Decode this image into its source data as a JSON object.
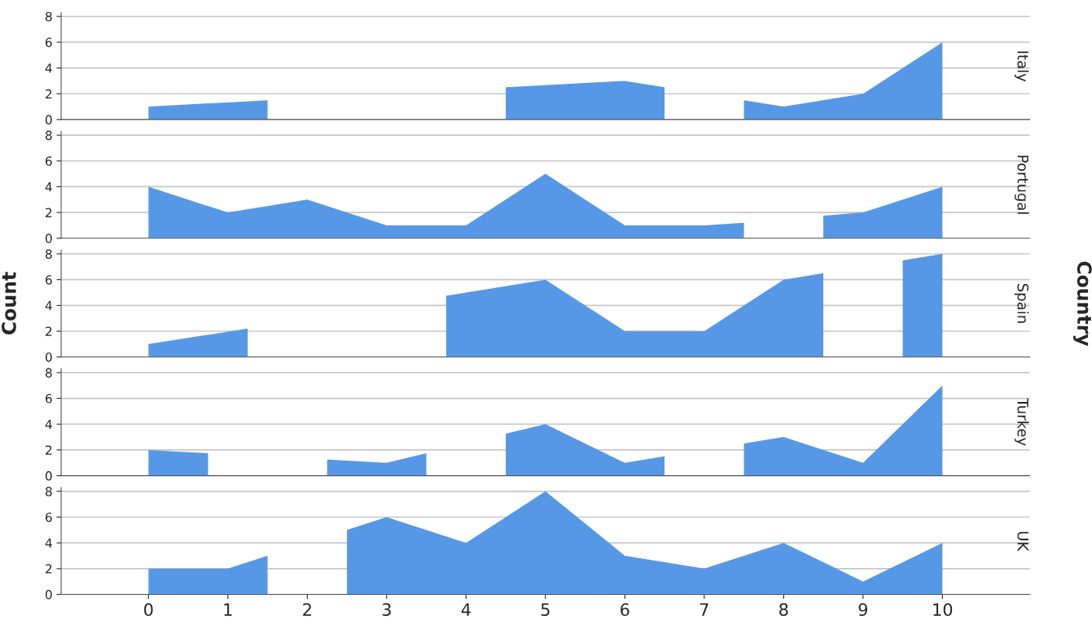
{
  "chart_data": [
    {
      "type": "area",
      "title": "Italy",
      "series": [
        {
          "color": "#5698e6",
          "x": [
            0,
            1.5
          ],
          "values": [
            1,
            1.5
          ]
        },
        {
          "color": "#5698e6",
          "x": [
            4.5,
            6,
            6.5
          ],
          "values": [
            2.5,
            3,
            2.5
          ]
        },
        {
          "color": "#5698e6",
          "x": [
            7.5,
            8,
            9,
            10
          ],
          "values": [
            1.5,
            1,
            2,
            6
          ]
        }
      ],
      "xlim": [
        -1.1,
        11.1
      ],
      "ylim": [
        0,
        8.3
      ],
      "xticks": [
        0,
        1,
        2,
        3,
        4,
        5,
        6,
        7,
        8,
        9,
        10
      ],
      "yticks": [
        0,
        2,
        4,
        6,
        8
      ],
      "grid": "y",
      "tick_labels": "y"
    },
    {
      "type": "area",
      "title": "Portugal",
      "series": [
        {
          "color": "#5698e6",
          "x": [
            0,
            1,
            2,
            3,
            4,
            5,
            6,
            7,
            7.5
          ],
          "values": [
            4,
            2,
            3,
            1,
            1,
            5,
            1,
            1,
            1.2
          ]
        },
        {
          "color": "#5698e6",
          "x": [
            8.5,
            9,
            10
          ],
          "values": [
            1.75,
            2,
            4
          ]
        }
      ],
      "xlim": [
        -1.1,
        11.1
      ],
      "ylim": [
        0,
        8.3
      ],
      "xticks": [
        0,
        1,
        2,
        3,
        4,
        5,
        6,
        7,
        8,
        9,
        10
      ],
      "yticks": [
        0,
        2,
        4,
        6,
        8
      ],
      "grid": "y",
      "tick_labels": "y"
    },
    {
      "type": "area",
      "title": "Spain",
      "ylabel": "Count",
      "y2label": "Country",
      "series": [
        {
          "color": "#5698e6",
          "x": [
            0,
            1.25
          ],
          "values": [
            1,
            2.2
          ]
        },
        {
          "color": "#5698e6",
          "x": [
            3.75,
            5,
            6,
            7,
            8,
            8.5
          ],
          "values": [
            4.75,
            6,
            2,
            2,
            6,
            6.5
          ]
        },
        {
          "color": "#5698e6",
          "x": [
            9.5,
            10
          ],
          "values": [
            7.5,
            8
          ]
        }
      ],
      "xlim": [
        -1.1,
        11.1
      ],
      "ylim": [
        0,
        8.3
      ],
      "xticks": [
        0,
        1,
        2,
        3,
        4,
        5,
        6,
        7,
        8,
        9,
        10
      ],
      "yticks": [
        0,
        2,
        4,
        6,
        8
      ],
      "grid": "y",
      "tick_labels": "y"
    },
    {
      "type": "area",
      "title": "Turkey",
      "series": [
        {
          "color": "#5698e6",
          "x": [
            0,
            0.75
          ],
          "values": [
            2,
            1.75
          ]
        },
        {
          "color": "#5698e6",
          "x": [
            2.25,
            3,
            3.5
          ],
          "values": [
            1.25,
            1,
            1.75
          ]
        },
        {
          "color": "#5698e6",
          "x": [
            4.5,
            5,
            6,
            6.5
          ],
          "values": [
            3.25,
            4,
            1,
            1.5
          ]
        },
        {
          "color": "#5698e6",
          "x": [
            7.5,
            8,
            9,
            10
          ],
          "values": [
            2.5,
            3,
            1,
            7
          ]
        }
      ],
      "xlim": [
        -1.1,
        11.1
      ],
      "ylim": [
        0,
        8.3
      ],
      "xticks": [
        0,
        1,
        2,
        3,
        4,
        5,
        6,
        7,
        8,
        9,
        10
      ],
      "yticks": [
        0,
        2,
        4,
        6,
        8
      ],
      "grid": "y",
      "tick_labels": "y"
    },
    {
      "type": "area",
      "title": "UK",
      "series": [
        {
          "color": "#5698e6",
          "x": [
            0,
            1,
            1.5
          ],
          "values": [
            2,
            2,
            3
          ]
        },
        {
          "color": "#5698e6",
          "x": [
            2.5,
            3,
            4,
            5,
            6,
            7,
            8,
            9,
            10
          ],
          "values": [
            5,
            6,
            4,
            8,
            3,
            2,
            4,
            1,
            4
          ]
        }
      ],
      "xlim": [
        -1.1,
        11.1
      ],
      "ylim": [
        0,
        8.3
      ],
      "xticks": [
        0,
        1,
        2,
        3,
        4,
        5,
        6,
        7,
        8,
        9,
        10
      ],
      "yticks": [
        0,
        2,
        4,
        6,
        8
      ],
      "grid": "y"
    }
  ]
}
